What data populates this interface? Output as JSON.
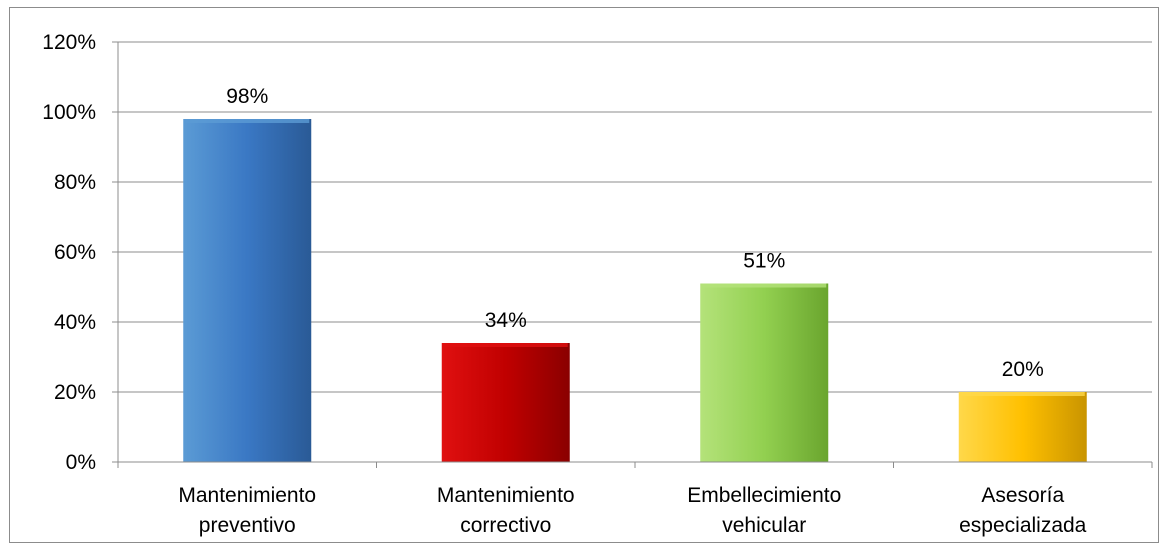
{
  "chart_data": {
    "type": "bar",
    "categories": [
      [
        "Mantenimiento",
        "preventivo"
      ],
      [
        "Mantenimiento",
        "correctivo"
      ],
      [
        "Embellecimiento",
        "vehicular"
      ],
      [
        "Asesoría",
        "especializada"
      ]
    ],
    "values": [
      98,
      34,
      51,
      20
    ],
    "data_labels": [
      "98%",
      "34%",
      "51%",
      "20%"
    ],
    "y_ticks": [
      "0%",
      "20%",
      "40%",
      "60%",
      "80%",
      "100%",
      "120%"
    ],
    "ylim": [
      0,
      120
    ],
    "y_unit": "%",
    "grid": true,
    "legend": "none",
    "title": "",
    "xlabel": "",
    "ylabel": "",
    "bar_colors": [
      {
        "light": "#5b9bd5",
        "mid": "#3a78c4",
        "dark": "#2a5a96"
      },
      {
        "light": "#e01010",
        "mid": "#c00000",
        "dark": "#8a0000"
      },
      {
        "light": "#b4e27a",
        "mid": "#92d050",
        "dark": "#6aa52e"
      },
      {
        "light": "#ffd84a",
        "mid": "#ffc000",
        "dark": "#c99400"
      }
    ],
    "gridline_color": "#8c8c8c",
    "axis_color": "#8c8c8c"
  }
}
